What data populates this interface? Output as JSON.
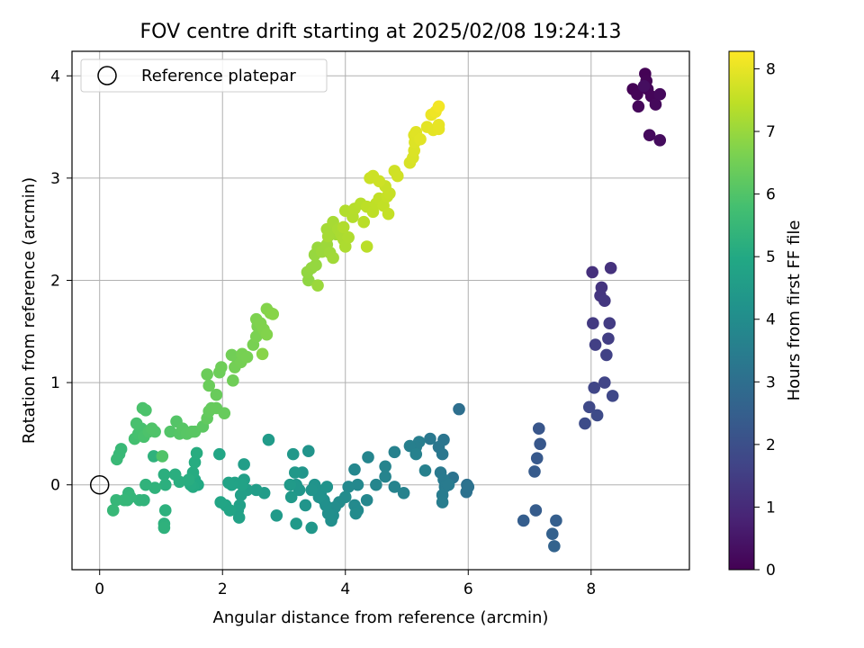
{
  "chart_data": {
    "type": "scatter",
    "title": "FOV centre drift starting at 2025/02/08 19:24:13",
    "xlabel": "Angular distance from reference (arcmin)",
    "ylabel": "Rotation from reference (arcmin)",
    "xlim": [
      -0.45,
      9.6
    ],
    "ylim": [
      -0.83,
      4.24
    ],
    "xticks": [
      0,
      2,
      4,
      6,
      8
    ],
    "yticks": [
      0,
      1,
      2,
      3,
      4
    ],
    "grid": true,
    "legend": {
      "placement": "upper-left",
      "entries": [
        "Reference platepar"
      ]
    },
    "reference_point": {
      "x": 0,
      "y": 0
    },
    "colorbar": {
      "label": "Hours from first FF file",
      "colormap": "viridis",
      "range": [
        0,
        8.28
      ],
      "ticks": [
        0,
        1,
        2,
        3,
        4,
        5,
        6,
        7,
        8
      ]
    },
    "points": [
      [
        8.68,
        3.87,
        0.05
      ],
      [
        8.75,
        3.82,
        0.08
      ],
      [
        8.88,
        4.02,
        0.03
      ],
      [
        8.9,
        3.95,
        0.06
      ],
      [
        8.92,
        3.87,
        0.1
      ],
      [
        8.98,
        3.8,
        0.12
      ],
      [
        8.77,
        3.7,
        0.15
      ],
      [
        9.05,
        3.72,
        0.18
      ],
      [
        9.12,
        3.82,
        0.2
      ],
      [
        8.95,
        3.42,
        0.22
      ],
      [
        9.12,
        3.37,
        0.25
      ],
      [
        8.86,
        3.9,
        0.3
      ],
      [
        8.02,
        2.08,
        1.15
      ],
      [
        8.32,
        2.12,
        1.2
      ],
      [
        8.17,
        1.93,
        1.25
      ],
      [
        8.15,
        1.85,
        1.28
      ],
      [
        8.22,
        1.8,
        1.32
      ],
      [
        8.03,
        1.58,
        1.4
      ],
      [
        8.3,
        1.58,
        1.45
      ],
      [
        8.28,
        1.43,
        1.5
      ],
      [
        8.07,
        1.37,
        1.55
      ],
      [
        8.25,
        1.27,
        1.6
      ],
      [
        8.22,
        1.0,
        1.68
      ],
      [
        8.05,
        0.95,
        1.72
      ],
      [
        8.35,
        0.87,
        1.78
      ],
      [
        7.97,
        0.76,
        1.82
      ],
      [
        8.1,
        0.68,
        1.86
      ],
      [
        7.9,
        0.6,
        1.9
      ],
      [
        7.15,
        0.55,
        2.2
      ],
      [
        7.17,
        0.4,
        2.25
      ],
      [
        7.12,
        0.26,
        2.3
      ],
      [
        7.08,
        0.13,
        2.35
      ],
      [
        7.1,
        -0.25,
        2.4
      ],
      [
        6.9,
        -0.35,
        2.45
      ],
      [
        7.43,
        -0.35,
        2.5
      ],
      [
        7.37,
        -0.48,
        2.55
      ],
      [
        7.4,
        -0.6,
        2.6
      ],
      [
        5.85,
        0.74,
        3.0
      ],
      [
        5.98,
        0.0,
        3.05
      ],
      [
        5.97,
        -0.07,
        3.08
      ],
      [
        6.0,
        -0.02,
        3.1
      ],
      [
        5.75,
        0.07,
        3.15
      ],
      [
        5.6,
        0.44,
        3.2
      ],
      [
        5.52,
        0.37,
        3.25
      ],
      [
        5.58,
        0.3,
        3.28
      ],
      [
        5.38,
        0.45,
        3.3
      ],
      [
        5.55,
        0.12,
        3.35
      ],
      [
        5.6,
        0.05,
        3.38
      ],
      [
        5.62,
        -0.02,
        3.4
      ],
      [
        5.68,
        0.0,
        3.42
      ],
      [
        5.58,
        -0.1,
        3.45
      ],
      [
        5.58,
        -0.17,
        3.48
      ],
      [
        5.2,
        0.42,
        3.5
      ],
      [
        5.15,
        0.37,
        3.52
      ],
      [
        5.05,
        0.38,
        3.55
      ],
      [
        5.3,
        0.14,
        3.58
      ],
      [
        5.15,
        0.3,
        3.6
      ],
      [
        4.8,
        0.32,
        3.62
      ],
      [
        4.95,
        -0.08,
        3.65
      ],
      [
        4.8,
        -0.02,
        3.68
      ],
      [
        4.65,
        0.18,
        3.7
      ],
      [
        4.65,
        0.08,
        3.72
      ],
      [
        4.37,
        0.27,
        3.75
      ],
      [
        4.5,
        0.0,
        3.78
      ],
      [
        4.35,
        -0.15,
        3.8
      ],
      [
        4.15,
        0.15,
        3.82
      ],
      [
        4.2,
        0.0,
        3.85
      ],
      [
        4.05,
        -0.02,
        3.88
      ],
      [
        4.15,
        -0.2,
        3.9
      ],
      [
        4.2,
        -0.25,
        3.92
      ],
      [
        4.17,
        -0.28,
        3.94
      ],
      [
        4.0,
        -0.12,
        3.96
      ],
      [
        3.9,
        -0.17,
        3.98
      ],
      [
        3.83,
        -0.22,
        4.0
      ],
      [
        3.75,
        -0.27,
        4.02
      ],
      [
        3.8,
        -0.3,
        4.04
      ],
      [
        3.77,
        -0.35,
        4.06
      ],
      [
        3.72,
        -0.28,
        4.08
      ],
      [
        3.68,
        -0.2,
        4.1
      ],
      [
        3.65,
        -0.15,
        4.12
      ],
      [
        3.6,
        -0.1,
        4.14
      ],
      [
        3.55,
        -0.05,
        4.16
      ],
      [
        3.57,
        -0.12,
        4.18
      ],
      [
        3.7,
        -0.02,
        4.2
      ],
      [
        3.5,
        0.0,
        4.22
      ],
      [
        3.45,
        -0.05,
        4.24
      ],
      [
        3.4,
        0.33,
        4.26
      ],
      [
        3.35,
        -0.2,
        4.28
      ],
      [
        3.3,
        0.12,
        4.3
      ],
      [
        3.25,
        -0.05,
        4.32
      ],
      [
        3.45,
        -0.42,
        4.34
      ],
      [
        3.2,
        0.0,
        4.36
      ],
      [
        3.15,
        0.3,
        4.38
      ],
      [
        3.18,
        0.12,
        4.4
      ],
      [
        3.12,
        -0.12,
        4.42
      ],
      [
        3.2,
        -0.38,
        4.44
      ],
      [
        3.1,
        0.0,
        4.46
      ],
      [
        2.88,
        -0.3,
        4.48
      ],
      [
        2.75,
        0.44,
        4.5
      ],
      [
        2.68,
        -0.08,
        4.55
      ],
      [
        2.55,
        -0.05,
        4.58
      ],
      [
        2.35,
        0.2,
        4.6
      ],
      [
        2.4,
        -0.05,
        4.62
      ],
      [
        2.35,
        0.05,
        4.64
      ],
      [
        2.3,
        -0.1,
        4.66
      ],
      [
        2.28,
        -0.2,
        4.68
      ],
      [
        2.25,
        -0.25,
        4.7
      ],
      [
        2.27,
        -0.32,
        4.72
      ],
      [
        2.32,
        0.0,
        4.74
      ],
      [
        2.2,
        0.02,
        4.76
      ],
      [
        2.15,
        0.0,
        4.78
      ],
      [
        2.1,
        0.02,
        4.8
      ],
      [
        2.05,
        -0.2,
        4.82
      ],
      [
        2.12,
        -0.25,
        4.84
      ],
      [
        1.97,
        -0.17,
        4.86
      ],
      [
        1.95,
        0.3,
        4.88
      ],
      [
        1.6,
        0.0,
        5.0
      ],
      [
        1.55,
        0.05,
        5.02
      ],
      [
        1.52,
        -0.02,
        5.04
      ],
      [
        1.48,
        0.0,
        5.06
      ],
      [
        1.52,
        0.12,
        5.08
      ],
      [
        1.55,
        0.22,
        5.1
      ],
      [
        1.58,
        0.31,
        5.12
      ],
      [
        1.45,
        0.05,
        5.14
      ],
      [
        1.3,
        0.03,
        5.16
      ],
      [
        1.23,
        0.1,
        5.18
      ],
      [
        1.05,
        0.1,
        5.2
      ],
      [
        1.07,
        0.0,
        5.22
      ],
      [
        1.07,
        -0.25,
        5.24
      ],
      [
        1.05,
        -0.38,
        5.26
      ],
      [
        1.05,
        -0.42,
        5.28
      ],
      [
        0.88,
        0.28,
        5.3
      ],
      [
        0.9,
        -0.03,
        5.32
      ],
      [
        0.75,
        0.0,
        5.34
      ],
      [
        0.72,
        -0.15,
        5.36
      ],
      [
        0.65,
        -0.15,
        5.38
      ],
      [
        0.47,
        -0.08,
        5.4
      ],
      [
        0.45,
        -0.15,
        5.42
      ],
      [
        0.5,
        -0.12,
        5.44
      ],
      [
        0.4,
        -0.15,
        5.46
      ],
      [
        0.27,
        -0.15,
        5.48
      ],
      [
        0.22,
        -0.25,
        5.5
      ],
      [
        0.32,
        0.3,
        5.52
      ],
      [
        0.35,
        0.35,
        5.54
      ],
      [
        0.28,
        0.25,
        5.56
      ],
      [
        0.57,
        0.45,
        5.8
      ],
      [
        0.63,
        0.5,
        5.82
      ],
      [
        0.68,
        0.55,
        5.84
      ],
      [
        0.6,
        0.6,
        5.86
      ],
      [
        0.72,
        0.47,
        5.88
      ],
      [
        0.7,
        0.75,
        5.9
      ],
      [
        0.75,
        0.73,
        5.92
      ],
      [
        0.8,
        0.52,
        5.94
      ],
      [
        0.9,
        0.52,
        5.96
      ],
      [
        0.85,
        0.55,
        5.98
      ],
      [
        1.02,
        0.28,
        6.0
      ],
      [
        1.15,
        0.52,
        6.02
      ],
      [
        1.25,
        0.62,
        6.04
      ],
      [
        1.3,
        0.5,
        6.06
      ],
      [
        1.35,
        0.55,
        6.08
      ],
      [
        1.42,
        0.5,
        6.1
      ],
      [
        1.5,
        0.52,
        6.12
      ],
      [
        1.55,
        0.52,
        6.14
      ],
      [
        1.68,
        0.57,
        6.16
      ],
      [
        1.75,
        0.65,
        6.25
      ],
      [
        1.78,
        0.72,
        6.28
      ],
      [
        1.82,
        0.75,
        6.3
      ],
      [
        1.9,
        0.75,
        6.32
      ],
      [
        2.03,
        0.7,
        6.34
      ],
      [
        1.9,
        0.88,
        6.36
      ],
      [
        1.78,
        0.97,
        6.38
      ],
      [
        1.75,
        1.08,
        6.4
      ],
      [
        1.95,
        1.1,
        6.42
      ],
      [
        1.98,
        1.15,
        6.44
      ],
      [
        2.17,
        1.02,
        6.46
      ],
      [
        2.15,
        1.27,
        6.48
      ],
      [
        2.25,
        1.22,
        6.5
      ],
      [
        2.2,
        1.15,
        6.52
      ],
      [
        2.3,
        1.2,
        6.54
      ],
      [
        2.32,
        1.28,
        6.56
      ],
      [
        2.4,
        1.25,
        6.58
      ],
      [
        2.5,
        1.37,
        6.6
      ],
      [
        2.55,
        1.45,
        6.62
      ],
      [
        2.57,
        1.55,
        6.64
      ],
      [
        2.55,
        1.62,
        6.66
      ],
      [
        2.62,
        1.58,
        6.68
      ],
      [
        2.67,
        1.52,
        6.7
      ],
      [
        2.72,
        1.47,
        6.72
      ],
      [
        2.72,
        1.72,
        6.74
      ],
      [
        2.78,
        1.68,
        6.76
      ],
      [
        2.82,
        1.67,
        6.78
      ],
      [
        2.65,
        1.28,
        6.8
      ],
      [
        3.4,
        2.0,
        6.9
      ],
      [
        3.38,
        2.08,
        6.92
      ],
      [
        3.45,
        2.12,
        6.94
      ],
      [
        3.52,
        2.15,
        6.96
      ],
      [
        3.5,
        2.25,
        6.98
      ],
      [
        3.55,
        2.32,
        7.0
      ],
      [
        3.55,
        1.95,
        7.02
      ],
      [
        3.62,
        2.28,
        7.04
      ],
      [
        3.7,
        2.35,
        7.06
      ],
      [
        3.75,
        2.27,
        7.08
      ],
      [
        3.8,
        2.22,
        7.1
      ],
      [
        3.85,
        2.45,
        7.12
      ],
      [
        3.7,
        2.5,
        7.14
      ],
      [
        3.72,
        2.43,
        7.16
      ],
      [
        3.8,
        2.57,
        7.18
      ],
      [
        3.88,
        2.5,
        7.2
      ],
      [
        3.93,
        2.45,
        7.22
      ],
      [
        3.97,
        2.4,
        7.24
      ],
      [
        4.0,
        2.33,
        7.26
      ],
      [
        4.05,
        2.42,
        7.28
      ],
      [
        3.97,
        2.52,
        7.3
      ],
      [
        4.0,
        2.68,
        7.32
      ],
      [
        4.12,
        2.62,
        7.34
      ],
      [
        4.15,
        2.7,
        7.36
      ],
      [
        4.25,
        2.75,
        7.38
      ],
      [
        4.3,
        2.57,
        7.4
      ],
      [
        4.35,
        2.33,
        7.42
      ],
      [
        4.35,
        2.72,
        7.44
      ],
      [
        4.45,
        2.67,
        7.46
      ],
      [
        4.5,
        2.75,
        7.48
      ],
      [
        4.55,
        2.8,
        7.5
      ],
      [
        4.62,
        2.73,
        7.52
      ],
      [
        4.7,
        2.65,
        7.54
      ],
      [
        4.68,
        2.82,
        7.56
      ],
      [
        4.72,
        2.85,
        7.58
      ],
      [
        4.65,
        2.92,
        7.6
      ],
      [
        4.4,
        3.0,
        7.62
      ],
      [
        4.45,
        3.02,
        7.64
      ],
      [
        4.55,
        2.97,
        7.66
      ],
      [
        4.8,
        3.07,
        7.68
      ],
      [
        4.85,
        3.02,
        7.7
      ],
      [
        5.05,
        3.15,
        7.8
      ],
      [
        5.1,
        3.2,
        7.82
      ],
      [
        5.12,
        3.27,
        7.84
      ],
      [
        5.13,
        3.35,
        7.86
      ],
      [
        5.12,
        3.42,
        7.88
      ],
      [
        5.15,
        3.45,
        7.9
      ],
      [
        5.22,
        3.38,
        7.92
      ],
      [
        5.33,
        3.5,
        7.94
      ],
      [
        5.43,
        3.47,
        7.96
      ],
      [
        5.52,
        3.48,
        7.98
      ],
      [
        5.52,
        3.52,
        8.0
      ],
      [
        5.4,
        3.62,
        8.05
      ],
      [
        5.47,
        3.65,
        8.1
      ],
      [
        5.52,
        3.7,
        8.15
      ]
    ]
  }
}
